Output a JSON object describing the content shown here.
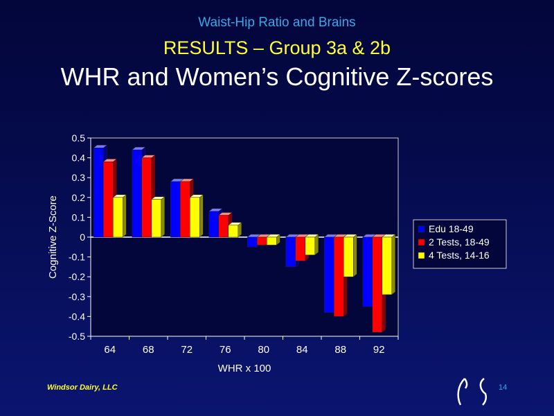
{
  "slide": {
    "top_title": "Waist-Hip Ratio and Brains",
    "subtitle": "RESULTS – Group 3a & 2b",
    "title": "WHR and Women’s Cognitive Z-scores",
    "footer": "Windsor Dairy, LLC",
    "page_number": "14"
  },
  "chart_data": {
    "type": "bar",
    "categories": [
      "64",
      "68",
      "72",
      "76",
      "80",
      "84",
      "88",
      "92"
    ],
    "series": [
      {
        "name": "Edu 18-49",
        "color": "#0000ff",
        "values": [
          0.45,
          0.44,
          0.28,
          0.13,
          -0.05,
          -0.15,
          -0.38,
          -0.35
        ]
      },
      {
        "name": "2 Tests, 18-49",
        "color": "#ff0000",
        "values": [
          0.38,
          0.4,
          0.28,
          0.11,
          -0.04,
          -0.12,
          -0.4,
          -0.48
        ]
      },
      {
        "name": "4 Tests, 14-16",
        "color": "#ffff00",
        "values": [
          0.2,
          0.19,
          0.2,
          0.06,
          -0.04,
          -0.09,
          -0.2,
          -0.29
        ]
      }
    ],
    "xlabel": "WHR x 100",
    "ylabel": "Cognitive Z-Score",
    "ylim": [
      -0.5,
      0.5
    ],
    "yticks": [
      "0.5",
      "0.4",
      "0.3",
      "0.2",
      "0.1",
      "0",
      "-0.1",
      "-0.2",
      "-0.3",
      "-0.4",
      "-0.5"
    ],
    "legend_position": "right"
  }
}
